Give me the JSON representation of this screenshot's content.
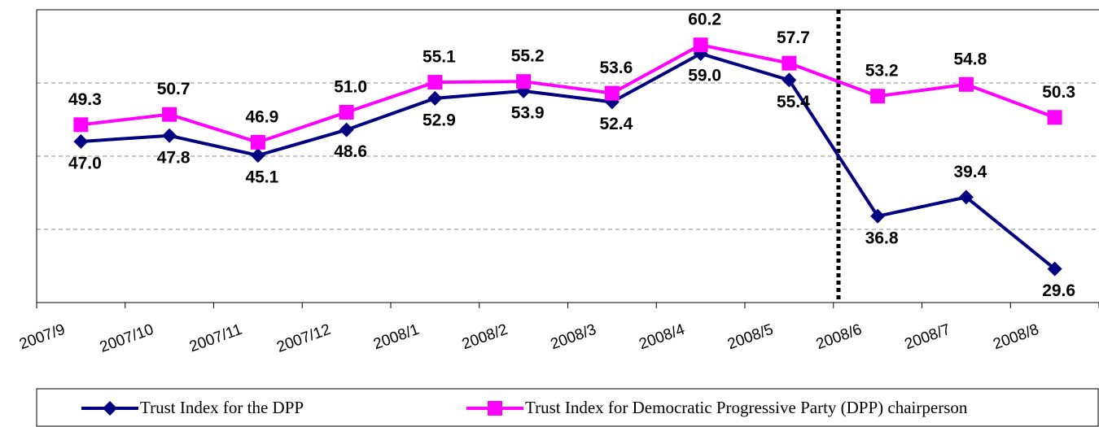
{
  "chart_data": {
    "type": "line",
    "categories": [
      "2007/9",
      "2007/10",
      "2007/11",
      "2007/12",
      "2008/1",
      "2008/2",
      "2008/3",
      "2008/4",
      "2008/5",
      "2008/6",
      "2008/7",
      "2008/8"
    ],
    "series": [
      {
        "name": "Trust Index for the DPP",
        "color": "#000080",
        "marker": "diamond",
        "values": [
          47.0,
          47.8,
          45.1,
          48.6,
          52.9,
          53.9,
          52.4,
          59.0,
          55.4,
          36.8,
          39.4,
          29.6
        ],
        "value_labels": [
          "47.0",
          "47.8",
          "45.1",
          "48.6",
          "52.9",
          "53.9",
          "52.4",
          "59.0",
          "55.4",
          "36.8",
          "39.4",
          "29.6"
        ]
      },
      {
        "name": "Trust Index for Democratic Progressive Party (DPP) chairperson",
        "color": "#ff00ff",
        "marker": "square",
        "values": [
          49.3,
          50.7,
          46.9,
          51.0,
          55.1,
          55.2,
          53.6,
          60.2,
          57.7,
          53.2,
          54.8,
          50.3
        ],
        "value_labels": [
          "49.3",
          "50.7",
          "46.9",
          "51.0",
          "55.1",
          "55.2",
          "53.6",
          "60.2",
          "57.7",
          "53.2",
          "54.8",
          "50.3"
        ]
      }
    ],
    "ylim": [
      25,
      65
    ],
    "yticks": [
      35,
      45,
      55
    ],
    "grid": true
  }
}
